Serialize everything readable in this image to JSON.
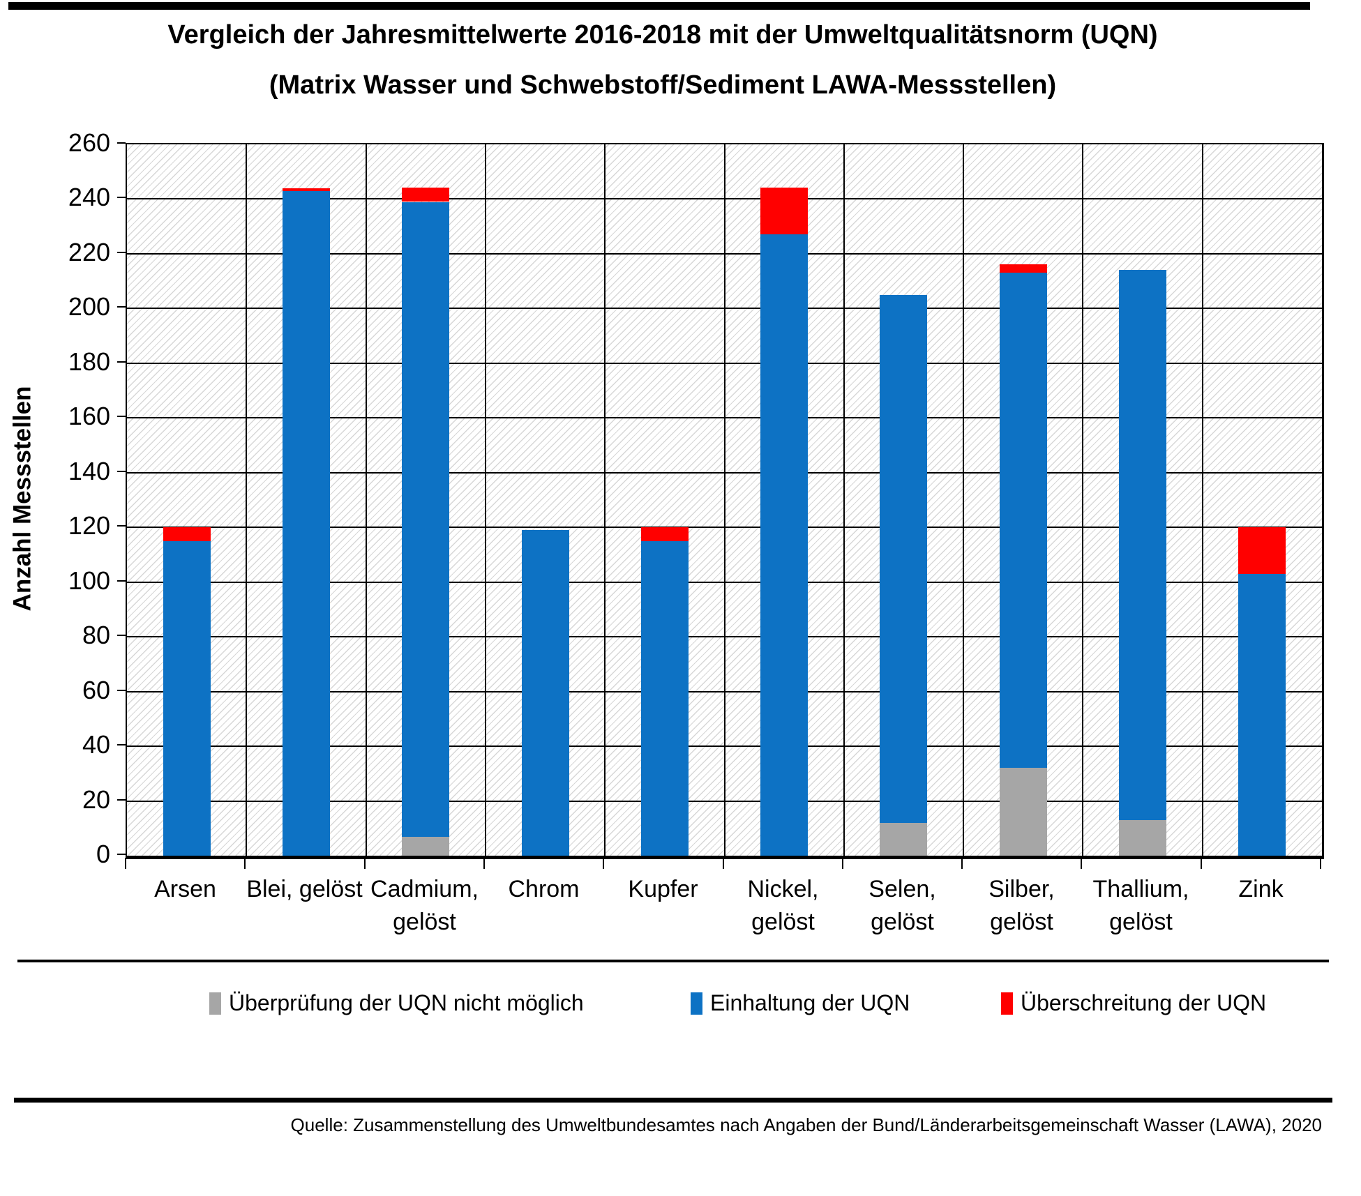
{
  "page": {
    "title": "Vergleich der Jahresmittelwerte 2016-2018 mit der Umweltqualitätsnorm (UQN)",
    "subtitle": "(Matrix Wasser und Schwebstoff/Sediment LAWA-Messstellen)",
    "source": "Quelle: Zusammenstellung des Umweltbundesamtes nach Angaben der Bund/Länderarbeitsgemeinschaft Wasser (LAWA), 2020"
  },
  "chart_data": {
    "type": "bar",
    "stacked": true,
    "title": "Vergleich der Jahresmittelwerte 2016-2018 mit der Umweltqualitätsnorm (UQN)",
    "subtitle": "(Matrix Wasser und Schwebstoff/Sediment LAWA-Messstellen)",
    "xlabel": "",
    "ylabel": "Anzahl Messstellen",
    "ylim": [
      0,
      260
    ],
    "ytick_step": 20,
    "grid": "both",
    "plot_background": "diagonal-hatch",
    "legend_position": "bottom",
    "categories": [
      "Arsen",
      "Blei, gelöst",
      "Cadmium, gelöst",
      "Chrom",
      "Kupfer",
      "Nickel, gelöst",
      "Selen, gelöst",
      "Silber, gelöst",
      "Thallium, gelöst",
      "Zink"
    ],
    "category_label_lines": [
      [
        "Arsen"
      ],
      [
        "Blei, gelöst"
      ],
      [
        "Cadmium,",
        "gelöst"
      ],
      [
        "Chrom"
      ],
      [
        "Kupfer"
      ],
      [
        "Nickel,",
        "gelöst"
      ],
      [
        "Selen,",
        "gelöst"
      ],
      [
        "Silber,",
        "gelöst"
      ],
      [
        "Thallium,",
        "gelöst"
      ],
      [
        "Zink"
      ]
    ],
    "series": [
      {
        "name": "Überprüfung der UQN nicht möglich",
        "color": "#a6a6a6",
        "values": [
          0,
          0,
          7,
          0,
          0,
          0,
          12,
          32,
          13,
          0
        ]
      },
      {
        "name": "Einhaltung der UQN",
        "color": "#0d72c4",
        "values": [
          115,
          243,
          232,
          119,
          115,
          227,
          193,
          181,
          201,
          103
        ]
      },
      {
        "name": "Überschreitung der UQN",
        "color": "#ff0000",
        "values": [
          5,
          1,
          5,
          0,
          5,
          17,
          0,
          3,
          0,
          17
        ]
      }
    ],
    "stack_totals": [
      120,
      244,
      244,
      119,
      120,
      244,
      205,
      216,
      214,
      120
    ]
  },
  "colors": {
    "not_verifiable": "#a6a6a6",
    "compliance": "#0d72c4",
    "exceedance": "#ff0000",
    "gridline": "#000000",
    "hatch_line": "#d7d7d7",
    "background": "#ffffff"
  }
}
